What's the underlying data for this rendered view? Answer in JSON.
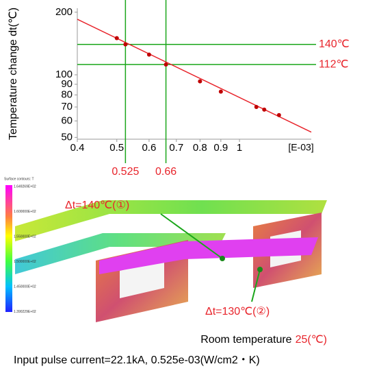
{
  "chart_data": {
    "type": "line",
    "y_label": "Temperature change dt(℃)",
    "x_unit": "[E-03]",
    "log": true,
    "xlim": [
      0.4,
      1.5
    ],
    "ylim": [
      49,
      209
    ],
    "xticks": [
      0.4,
      0.5,
      0.6,
      0.7,
      0.8,
      0.9,
      1
    ],
    "yticks": [
      50,
      60,
      70,
      80,
      90,
      100,
      200
    ],
    "series": [
      {
        "color": "#c00000",
        "x": [
          0.5,
          0.525,
          0.6,
          0.66,
          0.8,
          0.9,
          1.1,
          1.15,
          1.25
        ],
        "values": [
          150,
          140,
          125,
          112,
          93,
          83,
          70,
          68,
          64
        ]
      },
      {
        "color": "#e8242b",
        "x": [
          0.4,
          1.5
        ],
        "values": [
          185,
          53
        ]
      }
    ],
    "reference_lines": {
      "color": "#1aa61a",
      "label_color": "#e8242b",
      "x": [
        {
          "value": 0.525,
          "label": "0.525"
        },
        {
          "value": 0.66,
          "label": "0.66"
        }
      ],
      "y": [
        {
          "value": 140,
          "label": "140℃"
        },
        {
          "value": 112,
          "label": "112℃"
        }
      ]
    }
  },
  "image": {
    "legend_title": "Surface contours: T",
    "legend_labels": [
      "1.649269E+02",
      "1.600000E+02",
      "1.550000E+02",
      "1.500000E+02",
      "1.450000E+02",
      "1.390229E+02"
    ],
    "annotations": [
      "Δt=140℃(①)",
      "Δt=130℃(②)"
    ]
  },
  "caption": {
    "room_label": "Room temperature",
    "room_value": "25(℃)",
    "input": "Input pulse current=22.1kA, 0.525e-03(W/cm2・K)"
  }
}
